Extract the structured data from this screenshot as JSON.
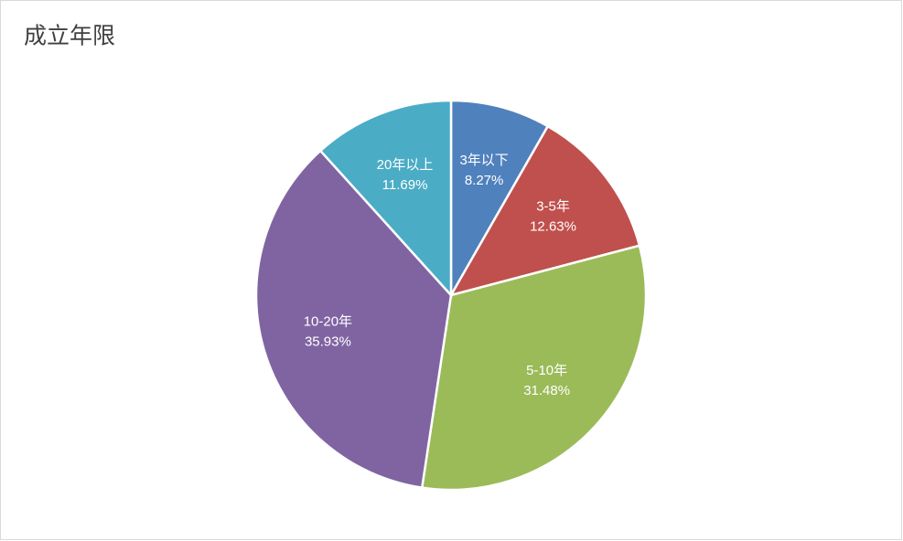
{
  "chart_data": {
    "type": "pie",
    "title": "成立年限",
    "categories": [
      "3年以下",
      "3-5年",
      "5-10年",
      "10-20年",
      "20年以上"
    ],
    "values": [
      8.27,
      12.63,
      31.48,
      35.93,
      11.69
    ],
    "value_labels": [
      "8.27%",
      "12.63%",
      "31.48%",
      "35.93%",
      "11.69%"
    ],
    "colors": [
      "#4f81bd",
      "#c0504d",
      "#9bbb59",
      "#8064a2",
      "#4bacc6"
    ]
  }
}
